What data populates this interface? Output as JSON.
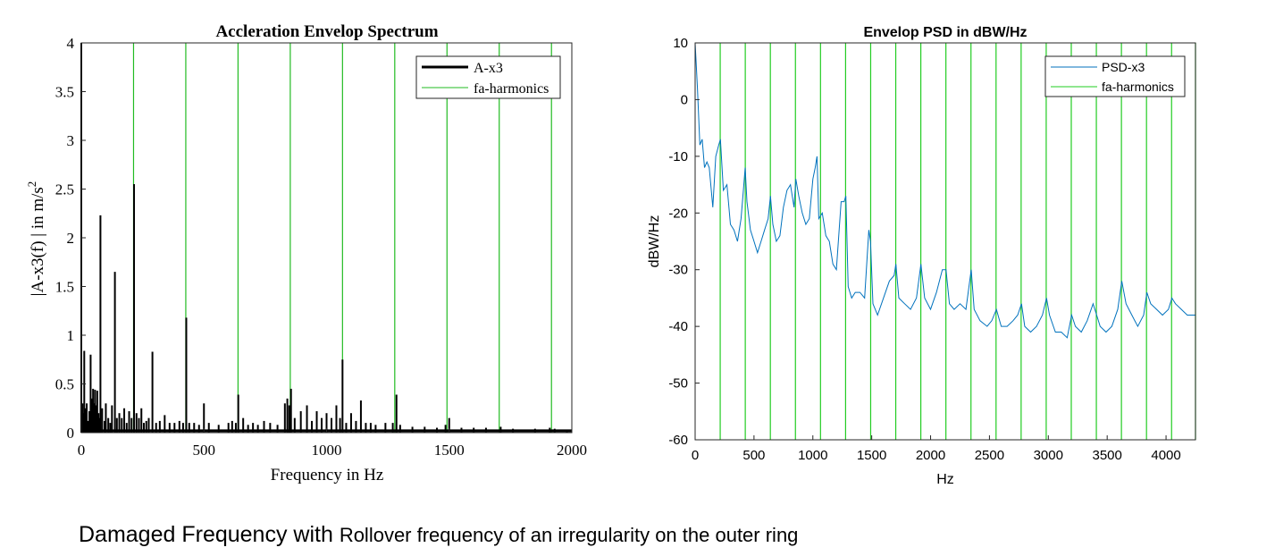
{
  "chart_data": [
    {
      "type": "line",
      "title": "Accleration Envelop Spectrum",
      "xlabel": "Frequency in Hz",
      "ylabel": "|A-x3(f) | in m/s",
      "ylabel_sup": "2",
      "xlim": [
        0,
        2000
      ],
      "ylim": [
        0,
        4
      ],
      "xticks": [
        "0",
        "500",
        "1000",
        "1500",
        "2000"
      ],
      "yticks": [
        "0",
        "0.5",
        "1",
        "1.5",
        "2",
        "2.5",
        "3",
        "3.5",
        "4"
      ],
      "legend_position": "top-right",
      "series": [
        {
          "name": "A-x3",
          "color": "#000000",
          "peaks": [
            [
              0,
              4.0
            ],
            [
              5,
              0.3
            ],
            [
              8,
              0.2
            ],
            [
              12,
              0.84
            ],
            [
              18,
              0.25
            ],
            [
              22,
              0.3
            ],
            [
              28,
              0.12
            ],
            [
              33,
              0.22
            ],
            [
              38,
              0.8
            ],
            [
              42,
              0.35
            ],
            [
              48,
              0.45
            ],
            [
              52,
              0.3
            ],
            [
              56,
              0.44
            ],
            [
              60,
              0.28
            ],
            [
              65,
              0.43
            ],
            [
              70,
              0.2
            ],
            [
              75,
              0.15
            ],
            [
              78,
              2.23
            ],
            [
              85,
              0.25
            ],
            [
              95,
              0.12
            ],
            [
              100,
              0.3
            ],
            [
              110,
              0.15
            ],
            [
              118,
              0.1
            ],
            [
              125,
              0.28
            ],
            [
              137,
              1.65
            ],
            [
              145,
              0.15
            ],
            [
              155,
              0.2
            ],
            [
              165,
              0.15
            ],
            [
              175,
              0.25
            ],
            [
              185,
              0.1
            ],
            [
              195,
              0.22
            ],
            [
              205,
              0.15
            ],
            [
              215,
              2.55
            ],
            [
              225,
              0.2
            ],
            [
              235,
              0.15
            ],
            [
              245,
              0.25
            ],
            [
              255,
              0.1
            ],
            [
              265,
              0.12
            ],
            [
              275,
              0.15
            ],
            [
              290,
              0.83
            ],
            [
              305,
              0.1
            ],
            [
              320,
              0.12
            ],
            [
              340,
              0.18
            ],
            [
              360,
              0.1
            ],
            [
              380,
              0.1
            ],
            [
              400,
              0.12
            ],
            [
              415,
              0.1
            ],
            [
              428,
              1.18
            ],
            [
              440,
              0.1
            ],
            [
              460,
              0.1
            ],
            [
              480,
              0.08
            ],
            [
              500,
              0.3
            ],
            [
              520,
              0.1
            ],
            [
              560,
              0.08
            ],
            [
              600,
              0.1
            ],
            [
              615,
              0.12
            ],
            [
              630,
              0.1
            ],
            [
              640,
              0.39
            ],
            [
              660,
              0.15
            ],
            [
              680,
              0.08
            ],
            [
              700,
              0.1
            ],
            [
              720,
              0.08
            ],
            [
              745,
              0.12
            ],
            [
              770,
              0.1
            ],
            [
              800,
              0.08
            ],
            [
              830,
              0.3
            ],
            [
              840,
              0.35
            ],
            [
              848,
              0.28
            ],
            [
              855,
              0.45
            ],
            [
              870,
              0.15
            ],
            [
              895,
              0.22
            ],
            [
              920,
              0.28
            ],
            [
              940,
              0.12
            ],
            [
              960,
              0.22
            ],
            [
              980,
              0.15
            ],
            [
              1000,
              0.2
            ],
            [
              1020,
              0.15
            ],
            [
              1040,
              0.28
            ],
            [
              1055,
              0.15
            ],
            [
              1065,
              0.75
            ],
            [
              1080,
              0.1
            ],
            [
              1100,
              0.2
            ],
            [
              1120,
              0.12
            ],
            [
              1140,
              0.33
            ],
            [
              1160,
              0.1
            ],
            [
              1180,
              0.1
            ],
            [
              1200,
              0.08
            ],
            [
              1240,
              0.1
            ],
            [
              1270,
              0.1
            ],
            [
              1285,
              0.39
            ],
            [
              1300,
              0.08
            ],
            [
              1350,
              0.06
            ],
            [
              1400,
              0.06
            ],
            [
              1450,
              0.05
            ],
            [
              1485,
              0.08
            ],
            [
              1500,
              0.15
            ],
            [
              1550,
              0.05
            ],
            [
              1600,
              0.05
            ],
            [
              1650,
              0.05
            ],
            [
              1710,
              0.06
            ],
            [
              1760,
              0.04
            ],
            [
              1850,
              0.04
            ],
            [
              1910,
              0.05
            ],
            [
              1930,
              0.04
            ],
            [
              1980,
              0.03
            ]
          ]
        },
        {
          "name": "fa-harmonics",
          "color": "#22bb22",
          "x": [
            0,
            213,
            426,
            639,
            852,
            1065,
            1278,
            1491,
            1704,
            1917
          ]
        }
      ]
    },
    {
      "type": "line",
      "title": "Envelop PSD in dBW/Hz",
      "xlabel": "Hz",
      "ylabel": "dBW/Hz",
      "xlim": [
        0,
        4250
      ],
      "ylim": [
        -60,
        10
      ],
      "xticks": [
        "0",
        "500",
        "1000",
        "1500",
        "2000",
        "2500",
        "3000",
        "3500",
        "4000"
      ],
      "yticks": [
        "-60",
        "-50",
        "-40",
        "-30",
        "-20",
        "-10",
        "0",
        "10"
      ],
      "legend_position": "top-right",
      "series": [
        {
          "name": "PSD-x3",
          "color": "#0072bd",
          "x": [
            0,
            20,
            40,
            60,
            80,
            100,
            120,
            150,
            175,
            200,
            215,
            240,
            270,
            300,
            330,
            360,
            390,
            410,
            425,
            440,
            470,
            500,
            530,
            560,
            590,
            620,
            640,
            660,
            690,
            720,
            750,
            780,
            810,
            840,
            855,
            880,
            910,
            940,
            970,
            1000,
            1020,
            1035,
            1050,
            1080,
            1110,
            1140,
            1170,
            1200,
            1240,
            1265,
            1280,
            1300,
            1330,
            1360,
            1400,
            1440,
            1475,
            1490,
            1510,
            1550,
            1600,
            1650,
            1690,
            1705,
            1730,
            1780,
            1830,
            1880,
            1918,
            1950,
            2000,
            2050,
            2100,
            2131,
            2160,
            2200,
            2250,
            2300,
            2345,
            2370,
            2420,
            2480,
            2520,
            2559,
            2600,
            2650,
            2700,
            2740,
            2772,
            2800,
            2850,
            2900,
            2950,
            2985,
            3010,
            3060,
            3110,
            3160,
            3198,
            3230,
            3280,
            3330,
            3380,
            3411,
            3440,
            3490,
            3540,
            3590,
            3624,
            3660,
            3710,
            3760,
            3810,
            3837,
            3870,
            3920,
            3970,
            4020,
            4050,
            4080,
            4130,
            4180,
            4250
          ],
          "y": [
            10,
            2,
            -8,
            -7,
            -12,
            -11,
            -12,
            -19,
            -10,
            -8,
            -7,
            -16,
            -15,
            -22,
            -23,
            -25,
            -21,
            -16,
            -12,
            -18,
            -23,
            -25,
            -27,
            -25,
            -23,
            -21,
            -17,
            -22,
            -25,
            -24,
            -19,
            -16,
            -15,
            -19,
            -14,
            -17,
            -20,
            -22,
            -21,
            -14,
            -12,
            -10,
            -21,
            -20,
            -24,
            -25,
            -29,
            -30,
            -18,
            -18,
            -17,
            -33,
            -35,
            -34,
            -34,
            -35,
            -23,
            -25,
            -36,
            -38,
            -35,
            -32,
            -31,
            -29,
            -35,
            -36,
            -37,
            -35,
            -29,
            -35,
            -37,
            -34,
            -30,
            -30,
            -36,
            -37,
            -36,
            -37,
            -30,
            -37,
            -39,
            -40,
            -39,
            -37,
            -40,
            -40,
            -39,
            -38,
            -36,
            -40,
            -41,
            -40,
            -38,
            -35,
            -38,
            -41,
            -41,
            -42,
            -38,
            -40,
            -41,
            -39,
            -36,
            -38,
            -40,
            -41,
            -40,
            -37,
            -32,
            -36,
            -38,
            -40,
            -38,
            -34,
            -36,
            -37,
            -38,
            -37,
            -35,
            -36,
            -37,
            -38,
            -38
          ]
        },
        {
          "name": "fa-harmonics",
          "color": "#22cc22",
          "x": [
            213,
            426,
            639,
            852,
            1065,
            1278,
            1491,
            1704,
            1917,
            2130,
            2343,
            2556,
            2769,
            2982,
            3195,
            3408,
            3621,
            3834,
            4047,
            4250
          ]
        }
      ]
    }
  ],
  "caption": {
    "part1": "Damaged Frequency with ",
    "part2": "Rollover frequency of an irregularity on the outer ring"
  }
}
